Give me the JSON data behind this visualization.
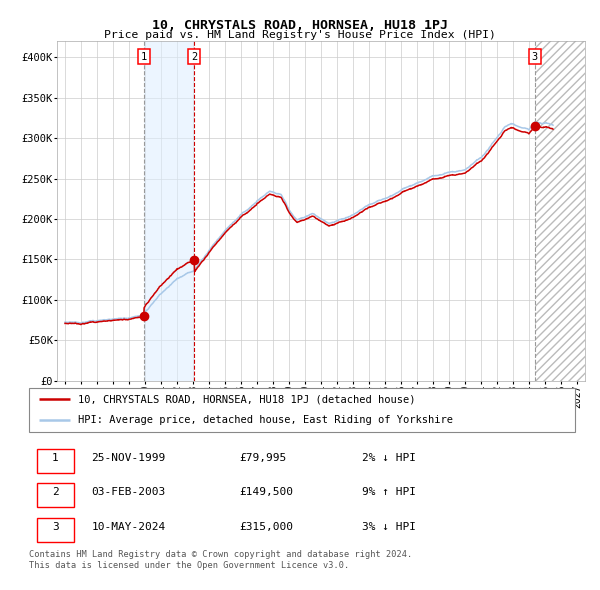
{
  "title1": "10, CHRYSTALS ROAD, HORNSEA, HU18 1PJ",
  "title2": "Price paid vs. HM Land Registry's House Price Index (HPI)",
  "ylim": [
    0,
    420000
  ],
  "xlim_start": 1994.5,
  "xlim_end": 2027.5,
  "sale_dates": [
    1999.917,
    2003.087,
    2024.37
  ],
  "sale_prices": [
    79995,
    149500,
    315000
  ],
  "sale_labels": [
    "1",
    "2",
    "3"
  ],
  "legend_line1": "10, CHRYSTALS ROAD, HORNSEA, HU18 1PJ (detached house)",
  "legend_line2": "HPI: Average price, detached house, East Riding of Yorkshire",
  "table_rows": [
    [
      "1",
      "25-NOV-1999",
      "£79,995",
      "2% ↓ HPI"
    ],
    [
      "2",
      "03-FEB-2003",
      "£149,500",
      "9% ↑ HPI"
    ],
    [
      "3",
      "10-MAY-2024",
      "£315,000",
      "3% ↓ HPI"
    ]
  ],
  "footnote1": "Contains HM Land Registry data © Crown copyright and database right 2024.",
  "footnote2": "This data is licensed under the Open Government Licence v3.0.",
  "hpi_line_color": "#a8c8e8",
  "price_line_color": "#cc0000",
  "sale_marker_color": "#cc0000",
  "shade_color": "#ddeeff",
  "grid_color": "#cccccc",
  "bg_color": "#ffffff"
}
